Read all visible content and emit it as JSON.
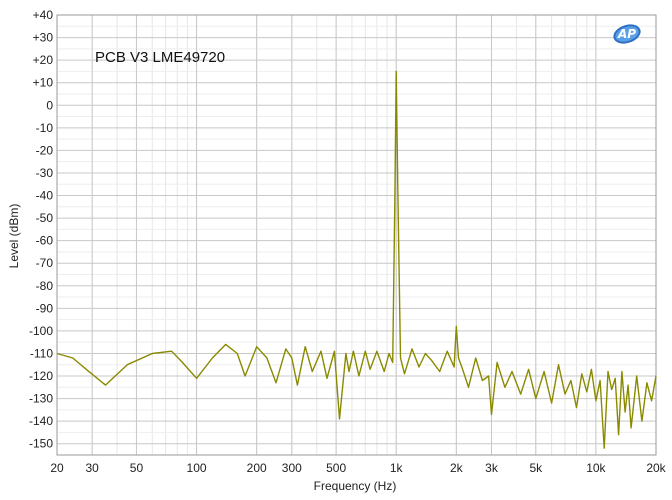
{
  "chart_data": {
    "type": "line",
    "title": "PCB V3  LME49720",
    "xlabel": "Frequency (Hz)",
    "ylabel": "Level (dBm)",
    "xscale": "log",
    "xlim": [
      20,
      20000
    ],
    "ylim": [
      -155,
      40
    ],
    "grid": true,
    "x_ticks": [
      {
        "value": 20,
        "label": "20"
      },
      {
        "value": 30,
        "label": "30"
      },
      {
        "value": 50,
        "label": "50"
      },
      {
        "value": 100,
        "label": "100"
      },
      {
        "value": 200,
        "label": "200"
      },
      {
        "value": 300,
        "label": "300"
      },
      {
        "value": 500,
        "label": "500"
      },
      {
        "value": 1000,
        "label": "1k"
      },
      {
        "value": 2000,
        "label": "2k"
      },
      {
        "value": 3000,
        "label": "3k"
      },
      {
        "value": 5000,
        "label": "5k"
      },
      {
        "value": 10000,
        "label": "10k"
      },
      {
        "value": 20000,
        "label": "20k"
      }
    ],
    "y_ticks": [
      {
        "value": 40,
        "label": "+40"
      },
      {
        "value": 30,
        "label": "+30"
      },
      {
        "value": 20,
        "label": "+20"
      },
      {
        "value": 10,
        "label": "+10"
      },
      {
        "value": 0,
        "label": "0"
      },
      {
        "value": -10,
        "label": "-10"
      },
      {
        "value": -20,
        "label": "-20"
      },
      {
        "value": -30,
        "label": "-30"
      },
      {
        "value": -40,
        "label": "-40"
      },
      {
        "value": -50,
        "label": "-50"
      },
      {
        "value": -60,
        "label": "-60"
      },
      {
        "value": -70,
        "label": "-70"
      },
      {
        "value": -80,
        "label": "-80"
      },
      {
        "value": -90,
        "label": "-90"
      },
      {
        "value": -100,
        "label": "-100"
      },
      {
        "value": -110,
        "label": "-110"
      },
      {
        "value": -120,
        "label": "-120"
      },
      {
        "value": -130,
        "label": "-130"
      },
      {
        "value": -140,
        "label": "-140"
      },
      {
        "value": -150,
        "label": "-150"
      }
    ],
    "series": [
      {
        "color": "#8a8a00",
        "x": [
          20,
          24,
          28,
          35,
          45,
          60,
          75,
          85,
          100,
          120,
          140,
          160,
          175,
          200,
          225,
          250,
          280,
          300,
          320,
          350,
          380,
          420,
          450,
          490,
          520,
          560,
          580,
          610,
          650,
          700,
          740,
          800,
          870,
          920,
          960,
          985,
          1000,
          1020,
          1050,
          1100,
          1200,
          1300,
          1400,
          1500,
          1650,
          1800,
          1950,
          2000,
          2050,
          2150,
          2300,
          2500,
          2700,
          2900,
          3000,
          3200,
          3500,
          3800,
          4200,
          4600,
          5000,
          5500,
          6000,
          6500,
          7000,
          7500,
          8000,
          8500,
          9000,
          9500,
          10000,
          10500,
          11000,
          11500,
          12000,
          12500,
          13000,
          13500,
          14000,
          14500,
          15000,
          16000,
          17000,
          18000,
          19000,
          20000
        ],
        "values": [
          -110,
          -112,
          -117,
          -124,
          -115,
          -110,
          -109,
          -114,
          -121,
          -112,
          -106,
          -110,
          -120,
          -107,
          -112,
          -123,
          -108,
          -112,
          -124,
          -107,
          -118,
          -109,
          -121,
          -109,
          -139,
          -110,
          -118,
          -109,
          -120,
          -109,
          -117,
          -109,
          -118,
          -110,
          -114,
          -40,
          15,
          -40,
          -112,
          -119,
          -108,
          -116,
          -110,
          -113,
          -118,
          -109,
          -116,
          -98,
          -112,
          -117,
          -125,
          -112,
          -122,
          -120,
          -137,
          -114,
          -125,
          -118,
          -128,
          -117,
          -130,
          -118,
          -132,
          -115,
          -128,
          -122,
          -134,
          -119,
          -127,
          -117,
          -131,
          -122,
          -152,
          -118,
          -126,
          -121,
          -146,
          -118,
          -136,
          -124,
          -143,
          -120,
          -140,
          -123,
          -131,
          -120
        ]
      }
    ]
  },
  "logo": {
    "text": "AP"
  }
}
